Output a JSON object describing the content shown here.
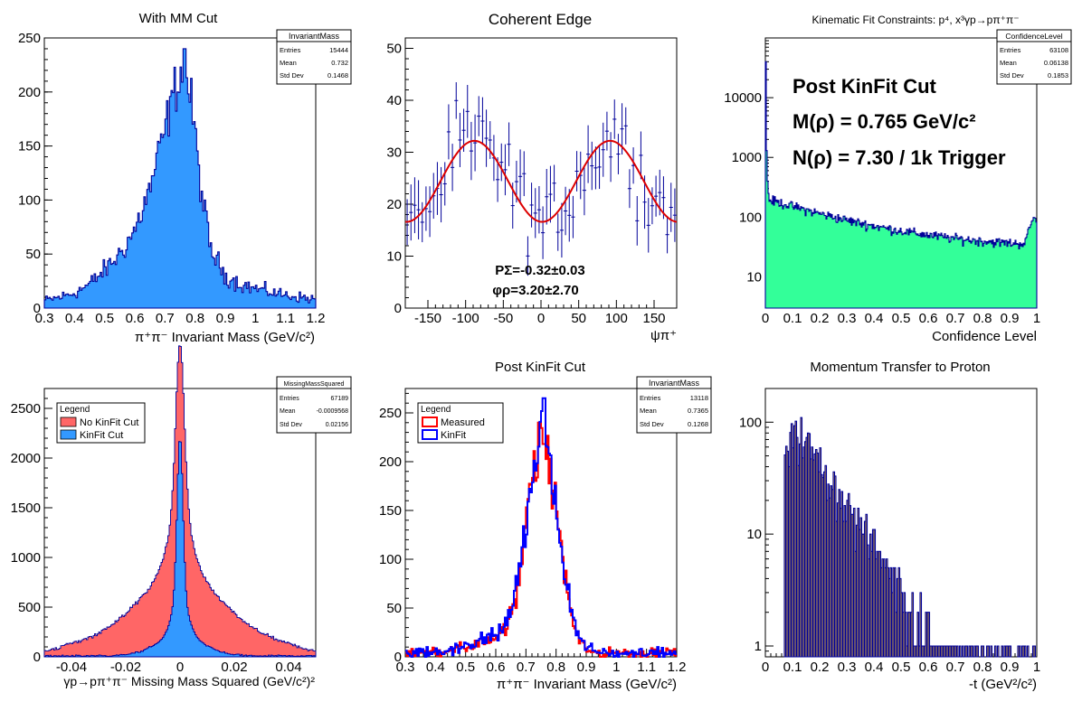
{
  "panels": [
    {
      "title": "With MM Cut",
      "xlabel": "π⁺π⁻ Invariant Mass (GeV/c²)",
      "stats": {
        "name": "InvariantMass",
        "rows": [
          [
            "Entries",
            "15444"
          ],
          [
            "Mean",
            "0.732"
          ],
          [
            "Std Dev",
            "0.1468"
          ]
        ]
      }
    },
    {
      "title": "Coherent Edge",
      "xlabel": "ψπ⁺",
      "fit_text": [
        "PΣ=-0.32±0.03",
        "φρ=3.20±2.70"
      ]
    },
    {
      "title": "Kinematic Fit Constraints: p⁴, x³γp→pπ⁺π⁻",
      "xlabel": "Confidence Level",
      "stats": {
        "name": "ConfidenceLevel",
        "rows": [
          [
            "Entries",
            "63108"
          ],
          [
            "Mean",
            "0.06138"
          ],
          [
            "Std Dev",
            "0.1853"
          ]
        ]
      },
      "annotations": [
        "Post KinFit Cut",
        "M(ρ) = 0.765 GeV/c²",
        "N(ρ) = 7.30 / 1k Trigger"
      ]
    },
    {
      "xlabel": "γp→pπ⁺π⁻ Missing Mass Squared (GeV/c²)²",
      "stats": {
        "name": "MissingMassSquared",
        "rows": [
          [
            "Entries",
            "67189"
          ],
          [
            "Mean",
            "-0.0009568"
          ],
          [
            "Std Dev",
            "0.02156"
          ]
        ]
      },
      "legend": {
        "title": "Legend",
        "entries": [
          "No KinFit Cut",
          "KinFit Cut"
        ]
      }
    },
    {
      "title": "Post KinFit Cut",
      "xlabel": "π⁺π⁻ Invariant Mass (GeV/c²)",
      "stats": {
        "name": "InvariantMass",
        "rows": [
          [
            "Entries",
            "13118"
          ],
          [
            "Mean",
            "0.7365"
          ],
          [
            "Std Dev",
            "0.1268"
          ]
        ]
      },
      "legend": {
        "title": "Legend",
        "entries": [
          "Measured",
          "KinFit"
        ]
      }
    },
    {
      "title": "Momentum Transfer to Proton",
      "xlabel": "-t (GeV²/c²)"
    }
  ],
  "colors": {
    "azure": "#3399ff",
    "navy": "#000099",
    "red": "#ff0000",
    "blue": "#0000ff",
    "salmon": "#ff6666",
    "green": "#33ff99",
    "orange": "#ffcc33",
    "fitred": "#dd0000"
  },
  "chart_data": [
    {
      "type": "histogram",
      "title": "With MM Cut",
      "xlabel": "π⁺π⁻ Invariant Mass (GeV/c²)",
      "xlim": [
        0.3,
        1.2
      ],
      "ylim": [
        0,
        250
      ],
      "xticks": [
        0.3,
        0.4,
        0.5,
        0.6,
        0.7,
        0.8,
        0.9,
        1,
        1.1,
        1.2
      ],
      "yticks": [
        0,
        50,
        100,
        150,
        200,
        250
      ],
      "profile": [
        [
          0.3,
          7
        ],
        [
          0.35,
          10
        ],
        [
          0.4,
          14
        ],
        [
          0.45,
          22
        ],
        [
          0.5,
          35
        ],
        [
          0.55,
          50
        ],
        [
          0.6,
          72
        ],
        [
          0.65,
          110
        ],
        [
          0.7,
          165
        ],
        [
          0.73,
          200
        ],
        [
          0.755,
          220
        ],
        [
          0.77,
          215
        ],
        [
          0.79,
          185
        ],
        [
          0.82,
          110
        ],
        [
          0.85,
          55
        ],
        [
          0.9,
          30
        ],
        [
          0.95,
          22
        ],
        [
          1.0,
          18
        ],
        [
          1.1,
          12
        ],
        [
          1.2,
          8
        ]
      ],
      "peak": 240,
      "fill": "#3399ff",
      "line": "#000099"
    },
    {
      "type": "scatter",
      "title": "Coherent Edge",
      "xlabel": "ψπ⁺",
      "xlim": [
        -180,
        180
      ],
      "ylim": [
        0,
        52
      ],
      "xticks": [
        -150,
        -100,
        -50,
        0,
        50,
        100,
        150
      ],
      "yticks": [
        0,
        10,
        20,
        30,
        40,
        50
      ],
      "fit": {
        "amplitude": 7.8,
        "offset": 24.4,
        "phase_deg": 3.2
      },
      "bins": 72
    },
    {
      "type": "histogram",
      "title": "Kinematic Fit Constraints",
      "xlabel": "Confidence Level",
      "xlim": [
        0,
        1
      ],
      "ylim": [
        3,
        100000
      ],
      "log_y": true,
      "xticks": [
        0,
        0.1,
        0.2,
        0.3,
        0.4,
        0.5,
        0.6,
        0.7,
        0.8,
        0.9,
        1
      ],
      "yticks": [
        10,
        100,
        1000,
        10000
      ],
      "fill": "#33ff99",
      "line": "#000099"
    },
    {
      "type": "histogram",
      "title": "",
      "xlabel": "γp→pπ⁺π⁻ Missing Mass Squared (GeV/c²)²",
      "xlim": [
        -0.05,
        0.05
      ],
      "ylim": [
        0,
        2700
      ],
      "xticks": [
        -0.04,
        -0.02,
        0,
        0.02,
        0.04
      ],
      "yticks": [
        0,
        500,
        1000,
        1500,
        2000,
        2500
      ],
      "series": [
        {
          "name": "No KinFit Cut",
          "peak": 2570,
          "fill": "#ff6666"
        },
        {
          "name": "KinFit Cut",
          "peak": 2080,
          "fill": "#3399ff"
        }
      ]
    },
    {
      "type": "histogram",
      "title": "Post KinFit Cut",
      "xlabel": "π⁺π⁻ Invariant Mass (GeV/c²)",
      "xlim": [
        0.3,
        1.2
      ],
      "ylim": [
        0,
        275
      ],
      "xticks": [
        0.3,
        0.4,
        0.5,
        0.6,
        0.7,
        0.8,
        0.9,
        1,
        1.1,
        1.2
      ],
      "yticks": [
        0,
        50,
        100,
        150,
        200,
        250
      ],
      "series": [
        {
          "name": "Measured",
          "peak": 240,
          "line": "#ff0000"
        },
        {
          "name": "KinFit",
          "peak": 265,
          "line": "#0000ff"
        }
      ]
    },
    {
      "type": "histogram",
      "title": "Momentum Transfer to Proton",
      "xlabel": "-t (GeV²/c²)",
      "xlim": [
        0,
        1
      ],
      "ylim": [
        0.8,
        200
      ],
      "log_y": true,
      "xticks": [
        0,
        0.1,
        0.2,
        0.3,
        0.4,
        0.5,
        0.6,
        0.7,
        0.8,
        0.9,
        1
      ],
      "yticks": [
        1,
        10,
        100
      ],
      "fill": "#ffcc33",
      "line": "#000099"
    }
  ]
}
